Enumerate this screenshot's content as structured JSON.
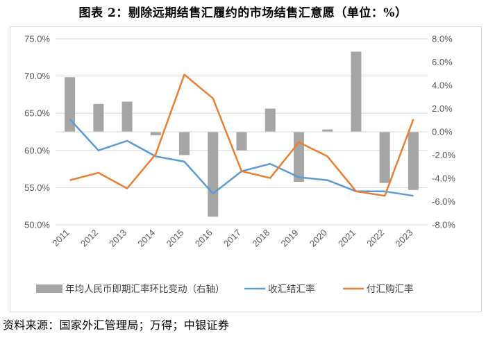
{
  "title": "图表 2：剔除远期结售汇履约的市场结售汇意愿（单位：%）",
  "source": "资料来源：国家外汇管理局；万得；中银证券",
  "chart_data": {
    "type": "bar+line",
    "categories": [
      "2011",
      "2012",
      "2013",
      "2014",
      "2015",
      "2016",
      "2017",
      "2018",
      "2019",
      "2020",
      "2021",
      "2022",
      "2023"
    ],
    "left_axis": {
      "ylim": [
        50,
        75
      ],
      "ticks": [
        "50.0%",
        "55.0%",
        "60.0%",
        "65.0%",
        "70.0%",
        "75.0%"
      ],
      "tick_values": [
        50,
        55,
        60,
        65,
        70,
        75
      ]
    },
    "right_axis": {
      "ylim": [
        -8,
        8
      ],
      "ticks": [
        "-8.0%",
        "-6.0%",
        "-4.0%",
        "-2.0%",
        "0.0%",
        "2.0%",
        "4.0%",
        "6.0%",
        "8.0%"
      ],
      "tick_values": [
        -8,
        -6,
        -4,
        -2,
        0,
        2,
        4,
        6,
        8
      ]
    },
    "series": [
      {
        "name": "年均人民币即期汇率环比变动（右轴）",
        "type": "bar",
        "axis": "right",
        "color": "#a5a5a5",
        "values": [
          4.7,
          2.4,
          2.6,
          -0.3,
          -2.0,
          -7.3,
          -1.6,
          2.0,
          -4.3,
          0.2,
          6.9,
          -4.4,
          -5.0
        ]
      },
      {
        "name": "收汇结汇率",
        "type": "line",
        "axis": "left",
        "color": "#5b9bd5",
        "values": [
          64.2,
          60.0,
          61.3,
          59.2,
          58.5,
          54.2,
          57.2,
          58.2,
          56.4,
          56.0,
          54.5,
          54.5,
          53.9
        ]
      },
      {
        "name": "付汇购汇率",
        "type": "line",
        "axis": "left",
        "color": "#ed7d31",
        "values": [
          56.0,
          57.0,
          54.9,
          59.5,
          70.2,
          67.0,
          57.2,
          56.3,
          61.1,
          59.2,
          54.5,
          53.9,
          64.2
        ]
      }
    ],
    "legend_position": "bottom"
  }
}
